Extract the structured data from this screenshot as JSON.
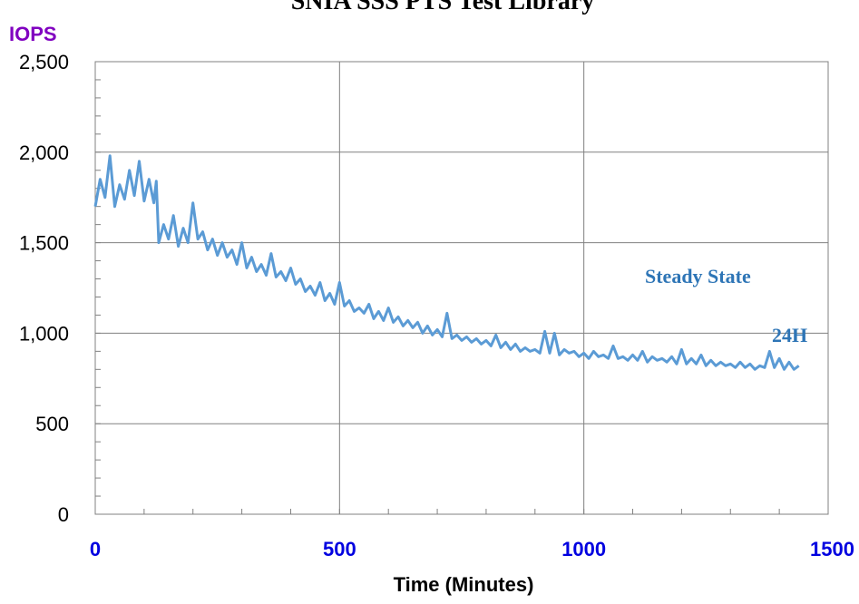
{
  "chart_data": {
    "type": "line",
    "title": "SNIA SSS PTS Test Library",
    "ylabel": "IOPS",
    "xlabel": "Time (Minutes)",
    "xlim": [
      0,
      1500
    ],
    "ylim": [
      0,
      2500
    ],
    "x_ticks": [
      0,
      500,
      1000,
      1500
    ],
    "x_tick_labels": [
      "0",
      "500",
      "1000",
      "1500"
    ],
    "y_ticks": [
      0,
      500,
      1000,
      1500,
      2000,
      2500
    ],
    "y_tick_labels": [
      "0",
      "500",
      "1,000",
      "1,500",
      "2,000",
      "2,500"
    ],
    "grid": true,
    "annotations": [
      "Steady State",
      "24H"
    ],
    "series": [
      {
        "color": "#5b9bd5",
        "x": [
          0,
          10,
          20,
          30,
          40,
          50,
          60,
          70,
          80,
          90,
          100,
          110,
          120,
          125,
          130,
          140,
          150,
          160,
          170,
          180,
          190,
          200,
          210,
          220,
          230,
          240,
          250,
          260,
          270,
          280,
          290,
          300,
          310,
          320,
          330,
          340,
          350,
          360,
          370,
          380,
          390,
          400,
          410,
          420,
          430,
          440,
          450,
          460,
          470,
          480,
          490,
          500,
          510,
          520,
          530,
          540,
          550,
          560,
          570,
          580,
          590,
          600,
          610,
          620,
          630,
          640,
          650,
          660,
          670,
          680,
          690,
          700,
          710,
          720,
          730,
          740,
          750,
          760,
          770,
          780,
          790,
          800,
          810,
          820,
          830,
          840,
          850,
          860,
          870,
          880,
          890,
          900,
          910,
          920,
          930,
          940,
          950,
          960,
          970,
          980,
          990,
          1000,
          1010,
          1020,
          1030,
          1040,
          1050,
          1060,
          1070,
          1080,
          1090,
          1100,
          1110,
          1120,
          1130,
          1140,
          1150,
          1160,
          1170,
          1180,
          1190,
          1200,
          1210,
          1220,
          1230,
          1240,
          1250,
          1260,
          1270,
          1280,
          1290,
          1300,
          1310,
          1320,
          1330,
          1340,
          1350,
          1360,
          1370,
          1380,
          1390,
          1400,
          1410,
          1420,
          1430,
          1440
        ],
        "y": [
          1700,
          1850,
          1750,
          1980,
          1700,
          1820,
          1740,
          1900,
          1760,
          1950,
          1730,
          1850,
          1720,
          1840,
          1500,
          1600,
          1520,
          1650,
          1480,
          1580,
          1500,
          1720,
          1520,
          1560,
          1460,
          1520,
          1430,
          1500,
          1420,
          1460,
          1380,
          1500,
          1360,
          1420,
          1340,
          1380,
          1320,
          1440,
          1310,
          1340,
          1290,
          1360,
          1270,
          1300,
          1230,
          1260,
          1210,
          1280,
          1180,
          1220,
          1160,
          1280,
          1150,
          1180,
          1120,
          1140,
          1110,
          1160,
          1080,
          1120,
          1070,
          1140,
          1060,
          1090,
          1040,
          1070,
          1030,
          1060,
          1000,
          1040,
          990,
          1020,
          980,
          1110,
          970,
          990,
          960,
          980,
          950,
          970,
          940,
          960,
          930,
          990,
          920,
          950,
          910,
          940,
          900,
          920,
          900,
          910,
          890,
          1010,
          890,
          1000,
          880,
          910,
          890,
          900,
          870,
          890,
          860,
          900,
          870,
          880,
          860,
          930,
          860,
          870,
          850,
          880,
          850,
          900,
          840,
          870,
          850,
          860,
          840,
          870,
          830,
          910,
          830,
          860,
          830,
          880,
          820,
          850,
          820,
          840,
          820,
          830,
          810,
          840,
          810,
          830,
          800,
          820,
          810,
          900,
          810,
          860,
          800,
          840,
          800,
          820
        ]
      }
    ]
  }
}
